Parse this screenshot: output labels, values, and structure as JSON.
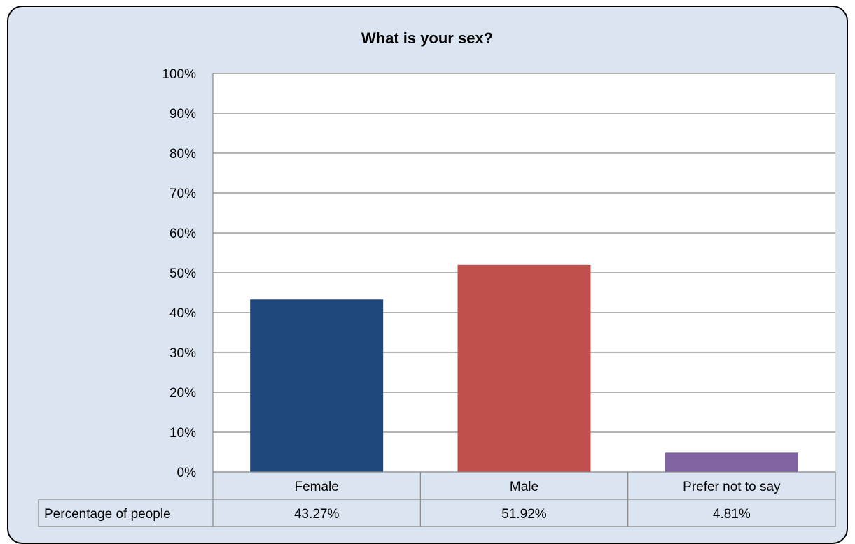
{
  "chart_data": {
    "type": "bar",
    "title": "What is your sex?",
    "categories": [
      "Female",
      "Male",
      "Prefer not to say"
    ],
    "values": [
      43.27,
      51.92,
      4.81
    ],
    "value_labels": [
      "43.27%",
      "51.92%",
      "4.81%"
    ],
    "colors": [
      "#1f497d",
      "#c0504d",
      "#8064a2"
    ],
    "series": [
      {
        "name": "Percentage of people",
        "values": [
          43.27,
          51.92,
          4.81
        ]
      }
    ],
    "ylim": [
      0,
      100
    ],
    "yticks": [
      "0%",
      "10%",
      "20%",
      "30%",
      "40%",
      "50%",
      "60%",
      "70%",
      "80%",
      "90%",
      "100%"
    ],
    "grid": true,
    "legend": "data table below chart",
    "table_row_label": "Percentage of people"
  }
}
